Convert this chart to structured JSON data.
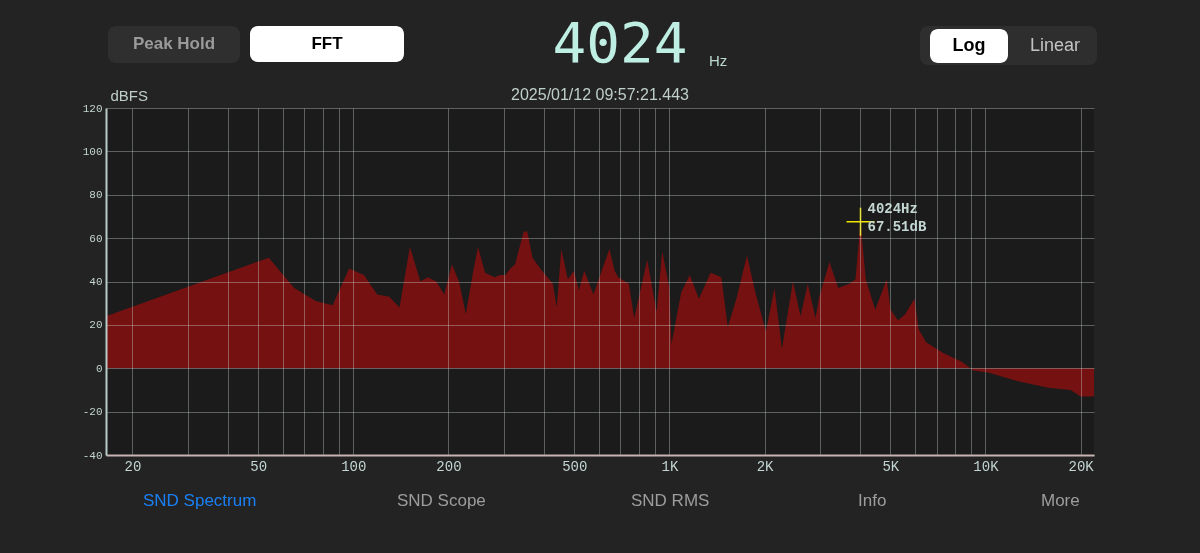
{
  "chart_data": {
    "type": "area",
    "title": "2025/01/12 09:57:21.443",
    "ylabel": "dBFS",
    "x": [
      16.5,
      54,
      65,
      76,
      86,
      97,
      108,
      119,
      130,
      140,
      151,
      163,
      172,
      183,
      194,
      205,
      216,
      227,
      239,
      248,
      261,
      280,
      291,
      303,
      314,
      325,
      346,
      355,
      369,
      390,
      428,
      440,
      455,
      477,
      499,
      517,
      538,
      575,
      646,
      671,
      689,
      744,
      774,
      851,
      911,
      949,
      1000,
      1015,
      1090,
      1160,
      1240,
      1350,
      1460,
      1530,
      1630,
      1760,
      1870,
      2020,
      2150,
      2270,
      2460,
      2600,
      2740,
      2900,
      2980,
      3210,
      3420,
      3710,
      3880,
      4024,
      4180,
      4480,
      4870,
      5010,
      5290,
      5580,
      5960,
      6150,
      6490,
      7350,
      8420,
      9150,
      10200,
      12700,
      15800,
      18600,
      20000,
      22050
    ],
    "values": [
      24,
      51,
      37,
      31,
      29,
      46,
      43,
      34,
      33,
      28,
      56,
      40,
      42,
      40,
      34,
      48,
      40,
      25,
      44,
      56,
      44,
      42,
      43,
      43,
      46,
      48,
      63,
      63,
      51,
      46,
      39,
      28,
      55,
      41,
      45,
      36,
      45,
      34,
      55,
      45,
      42,
      39,
      23,
      50,
      26,
      54,
      37,
      11,
      35,
      43,
      32,
      44,
      42,
      19,
      32,
      52,
      35,
      17,
      37,
      9,
      40,
      24,
      39,
      23,
      33,
      49,
      37,
      39,
      41,
      67.51,
      41,
      27,
      41,
      27,
      22,
      25,
      32,
      18,
      12,
      7,
      3,
      -1,
      -2,
      -6,
      -9,
      -10,
      -13,
      -13
    ],
    "color": "#761111",
    "xlim": [
      16.5,
      22050
    ],
    "ylim": [
      -40,
      120
    ],
    "xticks": [
      20,
      {
        "value": 30,
        "label": null
      },
      {
        "value": 40,
        "label": null
      },
      50,
      {
        "value": 60,
        "label": null
      },
      {
        "value": 70,
        "label": null
      },
      {
        "value": 80,
        "label": null
      },
      {
        "value": 90,
        "label": null
      },
      100,
      200,
      {
        "value": 300,
        "label": null
      },
      {
        "value": 400,
        "label": null
      },
      500,
      {
        "value": 600,
        "label": null
      },
      {
        "value": 700,
        "label": null
      },
      {
        "value": 800,
        "label": null
      },
      {
        "value": 900,
        "label": null
      },
      {
        "value": 1000,
        "label": "1K"
      },
      {
        "value": 2000,
        "label": "2K"
      },
      {
        "value": 3000,
        "label": null
      },
      {
        "value": 4000,
        "label": null
      },
      {
        "value": 5000,
        "label": "5K"
      },
      {
        "value": 6000,
        "label": null
      },
      {
        "value": 7000,
        "label": null
      },
      {
        "value": 8000,
        "label": null
      },
      {
        "value": 9000,
        "label": null
      },
      {
        "value": 10000,
        "label": "10K"
      },
      {
        "value": 20000,
        "label": "20K"
      }
    ],
    "yticks": [
      -40,
      -20,
      0,
      20,
      40,
      60,
      80,
      100,
      120
    ],
    "log": "x",
    "grid": true,
    "annotations": [
      {
        "text": "4024Hz\n67.51dB",
        "x": 4024,
        "y": 67.51
      },
      "Peak Hold",
      "FFT",
      "4024",
      "Hz",
      "Log",
      "Linear",
      "SND Spectrum",
      "SND Scope",
      "SND RMS",
      "Info",
      "More"
    ]
  }
}
